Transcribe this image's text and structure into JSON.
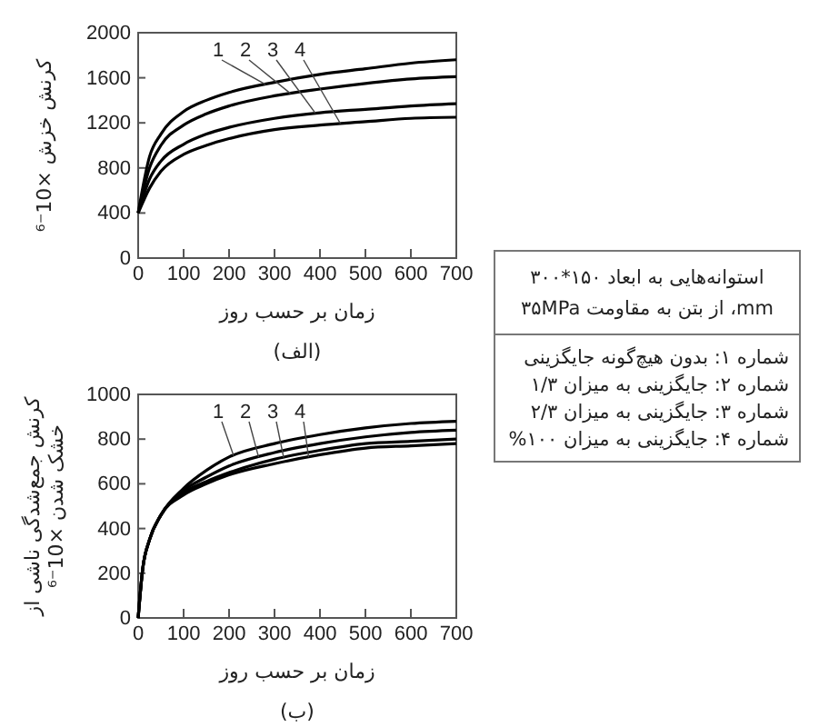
{
  "chart_data": [
    {
      "type": "line",
      "xlabel": "زمان بر حسب روز",
      "ylabel": "کرنش خزش ×10⁻⁶",
      "annotations": [
        "(الف)"
      ],
      "x": [
        0,
        25,
        50,
        100,
        150,
        200,
        300,
        400,
        500,
        600,
        700
      ],
      "xlim": [
        0,
        700
      ],
      "ylim": [
        0,
        2000
      ],
      "xticks": [
        0,
        100,
        200,
        300,
        400,
        500,
        600,
        700
      ],
      "yticks": [
        0,
        400,
        800,
        1200,
        1600,
        2000
      ],
      "series": [
        {
          "name": "1",
          "color": "#000000",
          "values": [
            400,
            900,
            1100,
            1300,
            1400,
            1470,
            1560,
            1630,
            1680,
            1730,
            1760
          ]
        },
        {
          "name": "2",
          "color": "#000000",
          "values": [
            400,
            800,
            1000,
            1180,
            1280,
            1350,
            1440,
            1500,
            1550,
            1590,
            1610
          ]
        },
        {
          "name": "3",
          "color": "#000000",
          "values": [
            400,
            700,
            860,
            1010,
            1100,
            1160,
            1240,
            1290,
            1320,
            1350,
            1370
          ]
        },
        {
          "name": "4",
          "color": "#000000",
          "values": [
            400,
            620,
            770,
            920,
            1000,
            1060,
            1140,
            1180,
            1210,
            1240,
            1250
          ]
        }
      ]
    },
    {
      "type": "line",
      "xlabel": "زمان بر حسب روز",
      "ylabel": "کرنش جمع‌شدگی ناشی از خشک شدن ×10⁻⁶",
      "annotations": [
        "(ب)"
      ],
      "x": [
        0,
        10,
        25,
        50,
        100,
        150,
        200,
        300,
        400,
        500,
        600,
        700
      ],
      "xlim": [
        0,
        700
      ],
      "ylim": [
        0,
        1000
      ],
      "xticks": [
        0,
        100,
        200,
        300,
        400,
        500,
        600,
        700
      ],
      "yticks": [
        0,
        200,
        400,
        600,
        800,
        1000
      ],
      "series": [
        {
          "name": "1",
          "color": "#000000",
          "values": [
            0,
            220,
            350,
            460,
            580,
            660,
            720,
            780,
            820,
            850,
            870,
            880
          ]
        },
        {
          "name": "2",
          "color": "#000000",
          "values": [
            0,
            220,
            350,
            460,
            570,
            630,
            680,
            740,
            780,
            810,
            830,
            840
          ]
        },
        {
          "name": "3",
          "color": "#000000",
          "values": [
            0,
            220,
            350,
            460,
            560,
            610,
            650,
            710,
            750,
            780,
            790,
            800
          ]
        },
        {
          "name": "4",
          "color": "#000000",
          "values": [
            0,
            220,
            350,
            460,
            550,
            600,
            640,
            690,
            730,
            760,
            770,
            780
          ]
        }
      ]
    },
    {
      "type": "other",
      "title": "استوانه‌هایی به ابعاد ۱۵۰*۳۰۰ mm، از بتن به مقاومت ۳۵MPa",
      "annotations": [
        "شماره ۱: بدون هیچ‌گونه جایگزینی",
        "شماره ۲: جایگزینی به میزان ۱/۳",
        "شماره ۳: جایگزینی به میزان ۲/۳",
        "شماره ۴: جایگزینی به میزان ۱۰۰%"
      ]
    }
  ]
}
